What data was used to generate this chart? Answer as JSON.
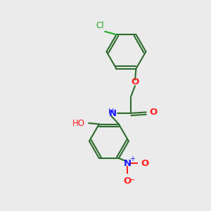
{
  "background_color": "#ebebeb",
  "bond_color": "#2d6b2d",
  "atom_colors": {
    "N": "#1a1aff",
    "O": "#ff2020",
    "Cl": "#22aa22",
    "H": "#2d6b2d"
  },
  "figsize": [
    3.0,
    3.0
  ],
  "dpi": 100,
  "xlim": [
    0,
    10
  ],
  "ylim": [
    0,
    10
  ]
}
